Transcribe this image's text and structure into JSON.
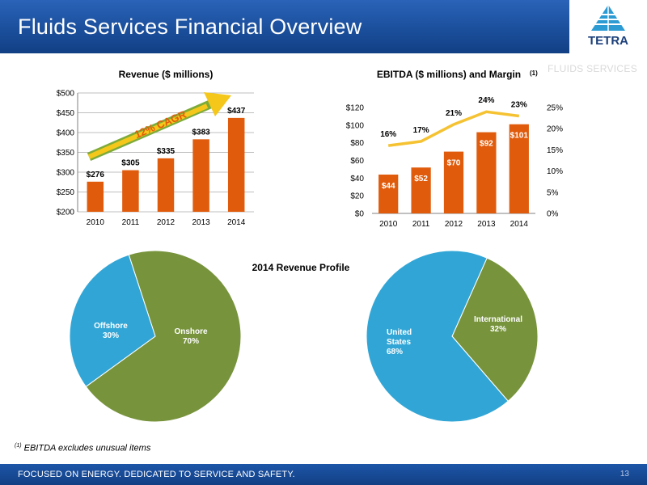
{
  "slide": {
    "title": "Fluids Services Financial Overview",
    "division": "FLUIDS SERVICES",
    "logo_text": "TETRA",
    "footnote_marker": "(1)",
    "footnote": "EBITDA excludes  unusual items",
    "footer_text": "FOCUSED ON ENERGY. DEDICATED TO SERVICE AND SAFETY.",
    "page_number": "13"
  },
  "colors": {
    "header_blue": "#1b4f9c",
    "bar_orange": "#e05c0c",
    "line_yellow": "#f5c232",
    "pie_green": "#77933c",
    "pie_blue": "#31a6d6"
  },
  "chart_data": [
    {
      "type": "bar",
      "title": "Revenue ($ millions)",
      "categories": [
        "2010",
        "2011",
        "2012",
        "2013",
        "2014"
      ],
      "values": [
        276,
        305,
        335,
        383,
        437
      ],
      "value_labels": [
        "$276",
        "$305",
        "$335",
        "$383",
        "$437"
      ],
      "ylim": [
        200,
        500
      ],
      "yticks": [
        200,
        250,
        300,
        350,
        400,
        450,
        500
      ],
      "ytick_labels": [
        "$200",
        "$250",
        "$300",
        "$350",
        "$400",
        "$450",
        "$500"
      ],
      "annotation": "12% CAGR",
      "grid": true
    },
    {
      "type": "bar",
      "title": "EBITDA ($ millions) and Margin",
      "title_superscript": "(1)",
      "categories": [
        "2010",
        "2011",
        "2012",
        "2013",
        "2014"
      ],
      "series": [
        {
          "type": "bar",
          "values": [
            44,
            52,
            70,
            92,
            101
          ],
          "labels": [
            "$44",
            "$52",
            "$70",
            "$92",
            "$101"
          ],
          "axis": "left"
        },
        {
          "type": "line",
          "values": [
            16,
            17,
            21,
            24,
            23
          ],
          "labels": [
            "16%",
            "17%",
            "21%",
            "24%",
            "23%"
          ],
          "axis": "right"
        }
      ],
      "ylim": [
        0,
        120
      ],
      "yticks": [
        0,
        20,
        40,
        60,
        80,
        100,
        120
      ],
      "ytick_labels": [
        "$0",
        "$20",
        "$40",
        "$60",
        "$80",
        "$100",
        "$120"
      ],
      "y2lim": [
        0,
        25
      ],
      "y2ticks": [
        0,
        5,
        10,
        15,
        20,
        25
      ],
      "y2tick_labels": [
        "0%",
        "5%",
        "10%",
        "15%",
        "20%",
        "25%"
      ]
    },
    {
      "type": "pie",
      "title": "2014 Revenue Profile",
      "slices": [
        {
          "label": "Onshore",
          "value": 70,
          "value_label": "70%",
          "color": "#77933c"
        },
        {
          "label": "Offshore",
          "value": 30,
          "value_label": "30%",
          "color": "#31a6d6"
        }
      ]
    },
    {
      "type": "pie",
      "slices": [
        {
          "label": "International",
          "value": 32,
          "value_label": "32%",
          "color": "#77933c"
        },
        {
          "label": "United States",
          "value": 68,
          "value_label": "68%",
          "color": "#31a6d6"
        }
      ]
    }
  ]
}
